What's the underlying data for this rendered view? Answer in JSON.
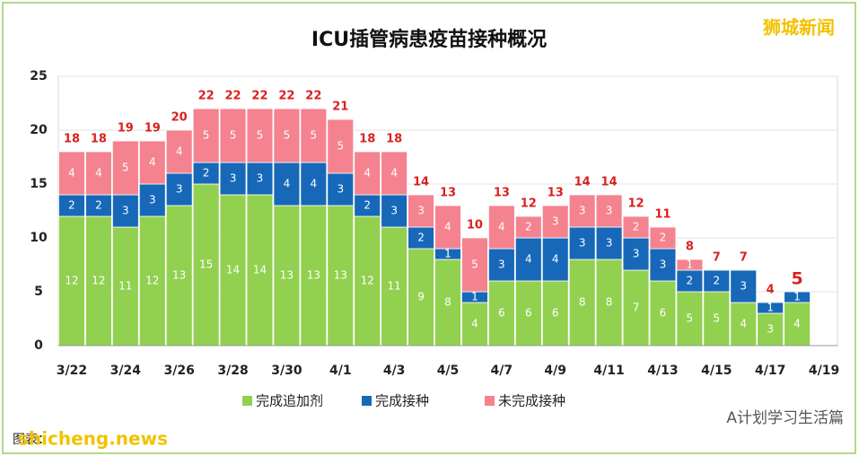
{
  "chart_data": {
    "type": "stacked_bar",
    "title": "ICU插管病患疫苗接种概况",
    "watermark": "狮城新闻",
    "source": "图表：",
    "site": "shicheng.news",
    "account": "A计划学习生活篇",
    "categories": [
      "3/22",
      null,
      "3/24",
      null,
      "3/26",
      null,
      "3/28",
      null,
      "3/30",
      null,
      "4/1",
      null,
      "4/3",
      null,
      "4/5",
      null,
      "4/7",
      null,
      "4/9",
      null,
      "4/11",
      null,
      "4/13",
      null,
      "4/15",
      null,
      "4/17",
      null,
      "4/19"
    ],
    "series": [
      {
        "name": "完成追加剂",
        "color": "#92d050",
        "values": [
          12,
          12,
          11,
          12,
          13,
          15,
          14,
          14,
          13,
          13,
          13,
          12,
          11,
          9,
          8,
          4,
          6,
          6,
          6,
          8,
          8,
          7,
          6,
          5,
          5,
          4,
          3,
          4,
          null
        ]
      },
      {
        "name": "完成接种",
        "color": "#1768b8",
        "values": [
          2,
          2,
          3,
          3,
          3,
          2,
          3,
          3,
          4,
          4,
          3,
          2,
          3,
          2,
          1,
          1,
          3,
          4,
          4,
          3,
          3,
          3,
          3,
          2,
          2,
          3,
          1,
          1,
          null
        ]
      },
      {
        "name": "未完成接种",
        "color": "#f4838f",
        "values": [
          4,
          4,
          5,
          4,
          4,
          5,
          5,
          5,
          5,
          5,
          5,
          4,
          4,
          3,
          4,
          5,
          4,
          2,
          3,
          3,
          3,
          2,
          2,
          1,
          0,
          0,
          0,
          0,
          null
        ]
      }
    ],
    "totals": [
      18,
      18,
      19,
      19,
      20,
      22,
      22,
      22,
      22,
      22,
      21,
      18,
      18,
      14,
      13,
      10,
      13,
      12,
      13,
      14,
      14,
      12,
      11,
      8,
      7,
      7,
      4,
      5,
      null
    ],
    "ylim": [
      0,
      25
    ],
    "yticks": [
      0,
      5,
      10,
      15,
      20,
      25
    ],
    "grid": true
  }
}
